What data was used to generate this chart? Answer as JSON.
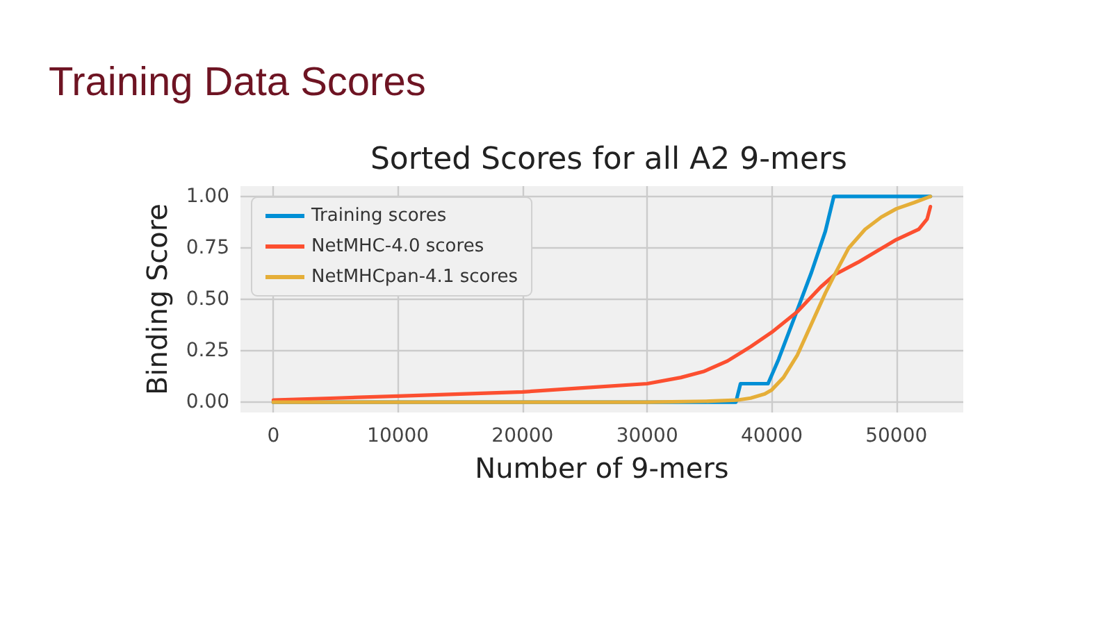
{
  "chart_data": {
    "type": "line",
    "title": "Training Data Scores",
    "subtitle": "Sorted Scores for all A2 9-mers",
    "xlabel": "Number of 9-mers",
    "ylabel": "Binding Score",
    "series": [
      {
        "name": "Training scores",
        "color": "#008fd5",
        "x": [
          0,
          37120,
          37490,
          39700,
          40560,
          40620,
          42060,
          43180,
          44300,
          44980,
          52730
        ],
        "values": [
          0,
          0,
          0.09,
          0.09,
          0.21,
          0.22,
          0.45,
          0.63,
          0.83,
          1.0,
          1.0
        ]
      },
      {
        "name": "NetMHC-4.0 scores",
        "color": "#fc4f30",
        "x": [
          0,
          5000,
          10000,
          15000,
          20000,
          25000,
          30000,
          32700,
          34570,
          36440,
          38310,
          40000,
          42060,
          43930,
          45050,
          46930,
          50000,
          51800,
          52470,
          52730
        ],
        "values": [
          0.01,
          0.02,
          0.03,
          0.04,
          0.05,
          0.07,
          0.09,
          0.12,
          0.15,
          0.2,
          0.27,
          0.34,
          0.44,
          0.56,
          0.62,
          0.68,
          0.79,
          0.84,
          0.89,
          0.95
        ]
      },
      {
        "name": "NetMHCpan-4.1 scores",
        "color": "#e5ae38",
        "x": [
          0,
          30000,
          35000,
          37190,
          38310,
          39440,
          40000,
          40940,
          42060,
          43180,
          44300,
          45050,
          46180,
          47490,
          48800,
          50000,
          51420,
          52730
        ],
        "values": [
          0,
          0,
          0.005,
          0.01,
          0.02,
          0.04,
          0.06,
          0.12,
          0.23,
          0.38,
          0.53,
          0.62,
          0.75,
          0.84,
          0.9,
          0.94,
          0.97,
          1.0
        ]
      }
    ],
    "xlim": [
      -2640,
      55370
    ],
    "xticks": [
      0,
      10000,
      20000,
      30000,
      40000,
      50000
    ],
    "ylim": [
      -0.05,
      1.05
    ],
    "yticks": [
      {
        "value": 0,
        "label": "0.00"
      },
      {
        "value": 0.25,
        "label": "0.25"
      },
      {
        "value": 0.5,
        "label": "0.50"
      },
      {
        "value": 0.75,
        "label": "0.75"
      },
      {
        "value": 1,
        "label": "1.00"
      }
    ],
    "grid": true,
    "legend": "top left"
  }
}
